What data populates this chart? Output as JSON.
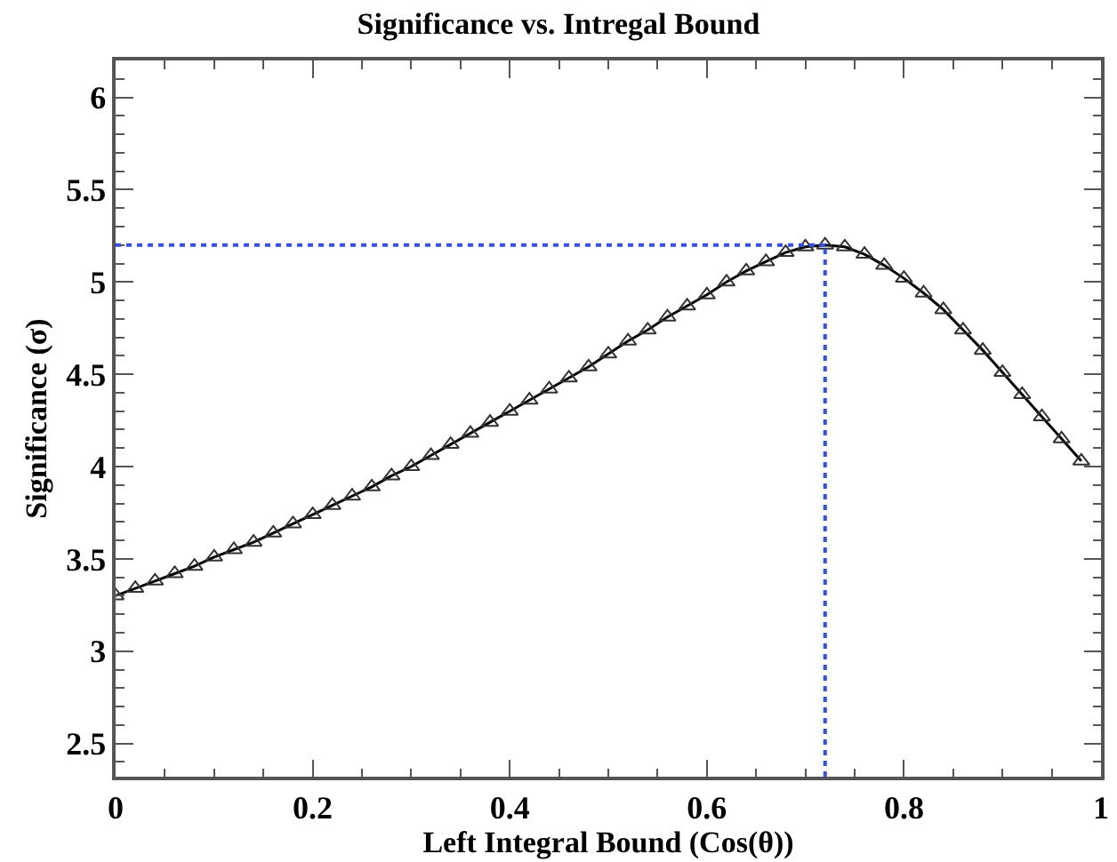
{
  "chart_data": {
    "type": "line",
    "title": "Significance vs. Intregal Bound",
    "xlabel": "Left Integral Bound (Cos(θ))",
    "ylabel": "Significance (σ)",
    "x": [
      0,
      0.02,
      0.04,
      0.06,
      0.08,
      0.1,
      0.12,
      0.14,
      0.16,
      0.18,
      0.2,
      0.22,
      0.24,
      0.26,
      0.28,
      0.3,
      0.32,
      0.34,
      0.36,
      0.38,
      0.4,
      0.42,
      0.44,
      0.46,
      0.48,
      0.5,
      0.52,
      0.54,
      0.56,
      0.58,
      0.6,
      0.62,
      0.64,
      0.66,
      0.68,
      0.7,
      0.72,
      0.74,
      0.76,
      0.78,
      0.8,
      0.82,
      0.84,
      0.86,
      0.88,
      0.9,
      0.92,
      0.94,
      0.96,
      0.98
    ],
    "series": [
      {
        "color": "#000000",
        "values": [
          3.3,
          3.34,
          3.38,
          3.42,
          3.46,
          3.51,
          3.55,
          3.59,
          3.64,
          3.69,
          3.74,
          3.79,
          3.84,
          3.89,
          3.95,
          4.0,
          4.06,
          4.12,
          4.18,
          4.24,
          4.3,
          4.36,
          4.42,
          4.48,
          4.54,
          4.61,
          4.68,
          4.74,
          4.81,
          4.87,
          4.93,
          5.0,
          5.06,
          5.11,
          5.16,
          5.19,
          5.2,
          5.19,
          5.15,
          5.09,
          5.02,
          4.94,
          4.85,
          4.74,
          4.63,
          4.51,
          4.39,
          4.27,
          4.15,
          4.03
        ]
      }
    ],
    "marker": "triangle",
    "xlim": [
      0,
      1
    ],
    "ylim": [
      2.32,
      6.2
    ],
    "xticks": [
      0,
      0.2,
      0.4,
      0.6,
      0.8,
      1
    ],
    "yticks": [
      2.5,
      3,
      3.5,
      4,
      4.5,
      5,
      5.5,
      6
    ],
    "ref_lines": [
      {
        "axis": "y",
        "value": 5.2,
        "color": "#3050f0",
        "line_style": "dotted"
      },
      {
        "axis": "x",
        "value": 0.72,
        "color": "#3050f0",
        "line_style": "dotted"
      }
    ]
  }
}
